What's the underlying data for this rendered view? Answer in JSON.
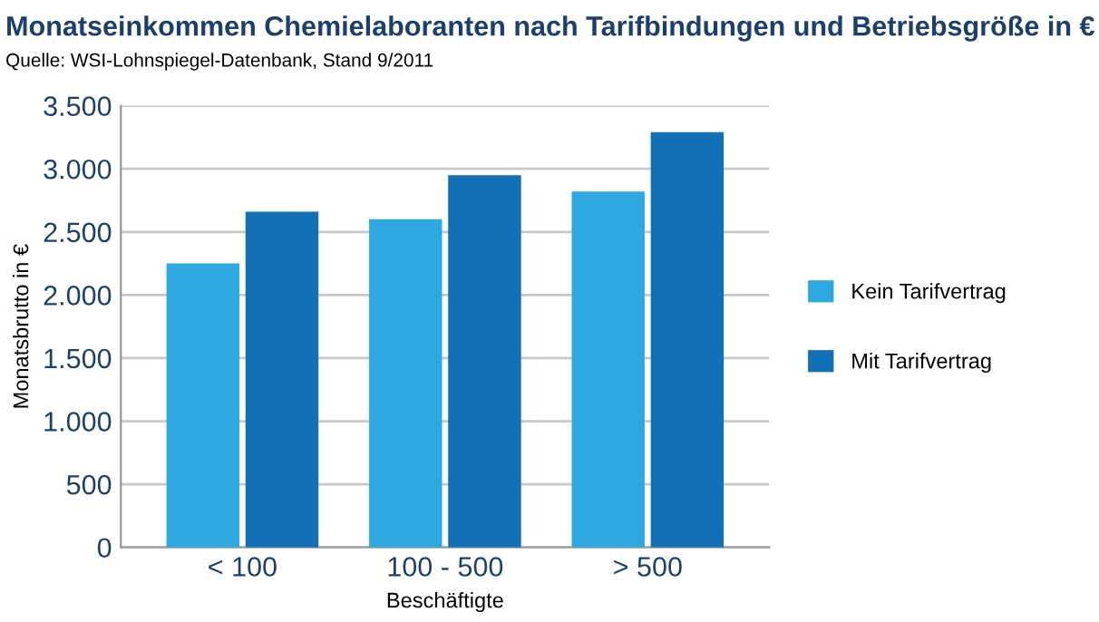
{
  "chart_data": {
    "type": "bar",
    "title": "Monatseinkommen Chemielaboranten nach Tarifbindungen und Betriebsgröße in €",
    "annotations": [
      "Quelle: WSI-Lohnspiegel-Datenbank, Stand 9/2011"
    ],
    "xlabel": "Beschäftigte",
    "ylabel": "Monatsbrutto in €",
    "categories": [
      "< 100",
      "100 - 500",
      "> 500"
    ],
    "series": [
      {
        "name": "Kein Tarifvertrag",
        "color": "#2ea8e0",
        "values": [
          2250,
          2600,
          2820
        ]
      },
      {
        "name": "Mit Tarifvertrag",
        "color": "#1170b6",
        "values": [
          2660,
          2950,
          3290
        ]
      }
    ],
    "ylim": [
      0,
      3500
    ],
    "yticks": [
      0,
      {
        "value": 500,
        "label": "500"
      },
      {
        "value": 1000,
        "label": "1.000"
      },
      {
        "value": 1500,
        "label": "1.500"
      },
      {
        "value": 2000,
        "label": "2.000"
      },
      {
        "value": 2500,
        "label": "2.500"
      },
      {
        "value": 3000,
        "label": "3.000"
      },
      {
        "value": 3500,
        "label": "3.500"
      }
    ],
    "grid": "y",
    "legend": "right"
  }
}
